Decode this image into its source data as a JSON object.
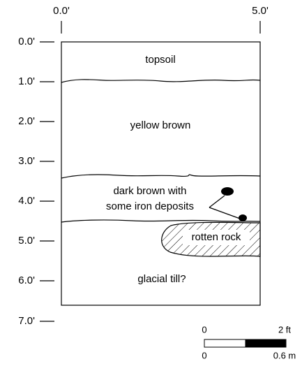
{
  "top_axis": {
    "labels": [
      "0.0'",
      "5.0'"
    ]
  },
  "depth_axis": {
    "labels": [
      "0.0'",
      "1.0'",
      "2.0'",
      "3.0'",
      "4.0'",
      "5.0'",
      "6.0'",
      "7.0'"
    ]
  },
  "layers": [
    {
      "label": "topsoil"
    },
    {
      "label": "yellow brown"
    },
    {
      "label": "dark brown with"
    },
    {
      "label": "some iron deposits"
    },
    {
      "label": "rotten rock"
    },
    {
      "label": "glacial till?"
    }
  ],
  "scale_bar": {
    "top_labels": [
      "0",
      "2 ft"
    ],
    "bottom_labels": [
      "0",
      "0.6 m"
    ]
  }
}
